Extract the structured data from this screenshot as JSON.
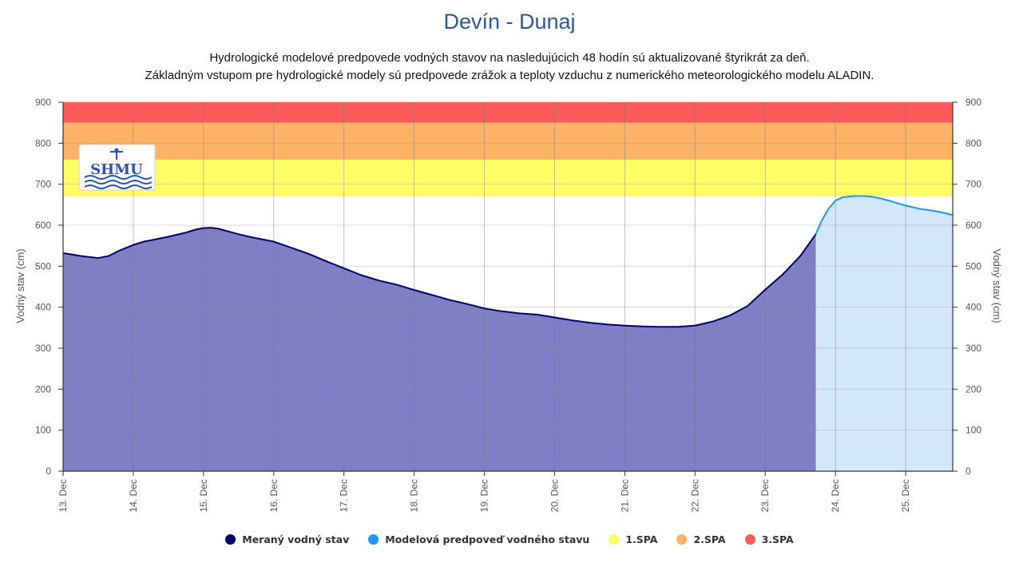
{
  "header": {
    "title": "Devín - Dunaj",
    "subtitle_line1": "Hydrologické modelové predpovede vodných stavov na nasledujúcich 48 hodín sú aktualizované štyrikrát za deň.",
    "subtitle_line2": "Základným vstupom pre hydrologické modely sú predpovede zrážok a teploty vzduchu z numerického meteorologického modelu ALADIN."
  },
  "logo": {
    "text": "SHMU",
    "icon": "shmu-logo-icon"
  },
  "legend": {
    "items": [
      {
        "label": "Meraný vodný stav",
        "color": "#000066"
      },
      {
        "label": "Modelová predpoveď vodného stavu",
        "color": "#2196f3"
      },
      {
        "label": "1.SPA",
        "color": "#ffff66"
      },
      {
        "label": "2.SPA",
        "color": "#ffb366"
      },
      {
        "label": "3.SPA",
        "color": "#ff5a5a"
      }
    ]
  },
  "chart_data": {
    "type": "area",
    "title": "Devín - Dunaj",
    "ylabel": "Vodný stav (cm)",
    "ylabel_right": "Vodný stav (cm)",
    "ylim": [
      0,
      900
    ],
    "yticks": [
      0,
      100,
      200,
      300,
      400,
      500,
      600,
      700,
      800,
      900
    ],
    "xlim_days": [
      13,
      25.67
    ],
    "xticks": [
      "13. Dec",
      "14. Dec",
      "15. Dec",
      "16. Dec",
      "17. Dec",
      "18. Dec",
      "19. Dec",
      "20. Dec",
      "21. Dec",
      "22. Dec",
      "23. Dec",
      "24. Dec",
      "25. Dec"
    ],
    "grid": true,
    "legend_position": "bottom",
    "bands": [
      {
        "name": "1.SPA",
        "from": 670,
        "to": 760,
        "color": "#ffff66"
      },
      {
        "name": "2.SPA",
        "from": 760,
        "to": 850,
        "color": "#ffb366"
      },
      {
        "name": "3.SPA",
        "from": 850,
        "to": 900,
        "color": "#ff5a5a"
      }
    ],
    "series": [
      {
        "name": "Meraný vodný stav",
        "color": "#000066",
        "fill": "#7f7fc5",
        "x": [
          13.0,
          13.25,
          13.5,
          13.65,
          13.8,
          14.0,
          14.15,
          14.3,
          14.5,
          14.75,
          14.9,
          15.0,
          15.1,
          15.2,
          15.35,
          15.5,
          15.7,
          16.0,
          16.25,
          16.5,
          16.75,
          17.0,
          17.25,
          17.5,
          17.75,
          18.0,
          18.25,
          18.5,
          18.75,
          19.0,
          19.25,
          19.5,
          19.75,
          20.0,
          20.25,
          20.5,
          20.75,
          21.0,
          21.25,
          21.5,
          21.75,
          22.0,
          22.25,
          22.5,
          22.75,
          23.0,
          23.25,
          23.5,
          23.72
        ],
        "y": [
          532,
          525,
          520,
          525,
          538,
          552,
          560,
          565,
          572,
          582,
          590,
          593,
          594,
          592,
          585,
          578,
          570,
          560,
          545,
          530,
          512,
          495,
          478,
          465,
          455,
          442,
          430,
          418,
          408,
          397,
          390,
          385,
          382,
          375,
          368,
          362,
          358,
          355,
          353,
          352,
          352,
          355,
          365,
          380,
          403,
          443,
          480,
          525,
          578
        ]
      },
      {
        "name": "Modelová predpoveď vodného stavu",
        "color": "#2196f3",
        "fill": "#d3e7fb",
        "x": [
          23.72,
          23.8,
          23.9,
          24.0,
          24.1,
          24.25,
          24.4,
          24.5,
          24.65,
          24.8,
          25.0,
          25.2,
          25.4,
          25.55,
          25.67
        ],
        "y": [
          578,
          610,
          640,
          660,
          668,
          671,
          671,
          670,
          665,
          658,
          648,
          640,
          635,
          630,
          625
        ]
      }
    ]
  }
}
